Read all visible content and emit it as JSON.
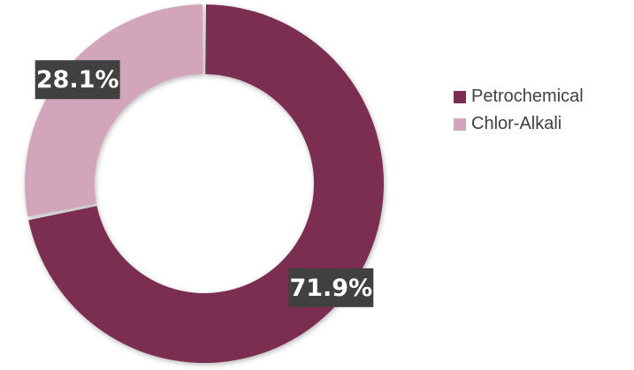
{
  "chart_data": {
    "type": "pie",
    "variant": "donut",
    "categories": [
      "Petrochemical",
      "Chlor-Alkali"
    ],
    "values": [
      71.9,
      28.1
    ],
    "unit": "%",
    "data_labels": [
      "71.9%",
      "28.1%"
    ],
    "colors": [
      "#7b2d51",
      "#d3a5ba"
    ],
    "label_box_color": "#3c3c3c",
    "title": "",
    "legend": {
      "position": "right",
      "entries": [
        "Petrochemical",
        "Chlor-Alkali"
      ]
    }
  }
}
